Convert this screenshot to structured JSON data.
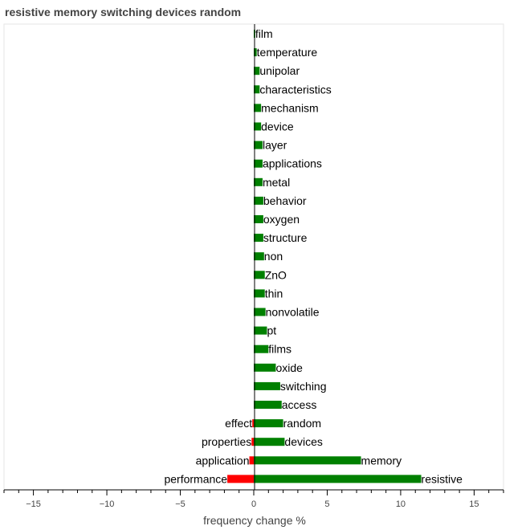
{
  "chart_data": {
    "type": "bar",
    "orientation": "horizontal",
    "title": "resistive memory switching devices random",
    "xlabel": "frequency change %",
    "ylabel": "",
    "xlim": [
      -17,
      17
    ],
    "xticks": [
      -15,
      -10,
      -5,
      0,
      5,
      10,
      15
    ],
    "xtick_labels": [
      "−15",
      "−10",
      "−5",
      "0",
      "5",
      "10",
      "15"
    ],
    "grid": false,
    "colors": {
      "positive": "#008000",
      "negative": "#ff0000"
    },
    "positive_series": {
      "categories": [
        "film",
        "temperature",
        "unipolar",
        "characteristics",
        "mechanism",
        "device",
        "layer",
        "applications",
        "metal",
        "behavior",
        "oxygen",
        "structure",
        "non",
        "ZnO",
        "thin",
        "nonvolatile",
        "pt",
        "films",
        "oxide",
        "switching",
        "access",
        "random",
        "devices",
        "memory",
        "resistive"
      ],
      "values": [
        0.1,
        0.2,
        0.4,
        0.4,
        0.5,
        0.5,
        0.6,
        0.6,
        0.6,
        0.65,
        0.65,
        0.65,
        0.7,
        0.75,
        0.75,
        0.8,
        0.9,
        1.0,
        1.5,
        1.8,
        1.9,
        2.0,
        2.1,
        7.3,
        11.4
      ]
    },
    "negative_series": {
      "categories": [
        "effect",
        "properties",
        "application",
        "performance"
      ],
      "values": [
        -0.1,
        -0.15,
        -0.3,
        -1.8
      ]
    }
  }
}
